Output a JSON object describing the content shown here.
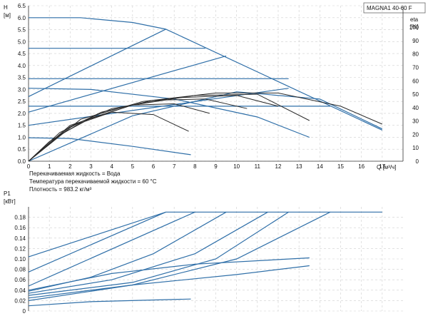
{
  "chart_data": [
    {
      "type": "line",
      "title": "MAGNA1 40-60 F",
      "ylabel": "H",
      "ylabel_unit": "[м]",
      "y2label": "eta",
      "y2label_unit": "[%]",
      "xlabel": "Q [м³/ч]",
      "xlim": [
        0,
        18
      ],
      "ylim": [
        0,
        6.5
      ],
      "y2lim": [
        0,
        100
      ],
      "grid": true,
      "xticks": [
        "0",
        "1",
        "2",
        "3",
        "4",
        "5",
        "6",
        "7",
        "8",
        "9",
        "10",
        "11",
        "12",
        "13",
        "14",
        "15",
        "16",
        "17"
      ],
      "yticks": [
        "0.0",
        "0.5",
        "1.0",
        "1.5",
        "2.0",
        "2.5",
        "3.0",
        "3.5",
        "4.0",
        "4.5",
        "5.0",
        "5.5",
        "6.0",
        "6.5"
      ],
      "y2ticks": [
        "0",
        "10",
        "20",
        "30",
        "40",
        "50",
        "60",
        "70",
        "80",
        "90",
        "100"
      ],
      "notes": [
        "Перекачиваемая жидкость = Вода",
        "Температура перекачиваемой жидкости = 60 °C",
        "Плотность = 983.2 кг/м³"
      ],
      "series_blue": [
        {
          "x": [
            0,
            2.5,
            5,
            6.6
          ],
          "y": [
            6.0,
            6.0,
            5.8,
            5.52
          ]
        },
        {
          "x": [
            6.6,
            17
          ],
          "y": [
            5.52,
            1.3
          ]
        },
        {
          "x": [
            0,
            6.6
          ],
          "y": [
            2.7,
            5.52
          ]
        },
        {
          "x": [
            0,
            8.5
          ],
          "y": [
            4.72,
            4.72
          ]
        },
        {
          "x": [
            0,
            9.5
          ],
          "y": [
            2.05,
            4.4
          ]
        },
        {
          "x": [
            0,
            12.5
          ],
          "y": [
            3.45,
            3.45
          ]
        },
        {
          "x": [
            0,
            12.5
          ],
          "y": [
            1.5,
            3.05
          ]
        },
        {
          "x": [
            0,
            4,
            9,
            14.5
          ],
          "y": [
            2.3,
            2.3,
            2.3,
            2.3
          ]
        },
        {
          "x": [
            0,
            3,
            7,
            11,
            13.5
          ],
          "y": [
            3.05,
            3.0,
            2.6,
            1.85,
            1.0
          ]
        },
        {
          "x": [
            0,
            2,
            5,
            7.8
          ],
          "y": [
            0.98,
            0.95,
            0.62,
            0.27
          ]
        },
        {
          "x": [
            0,
            5,
            10,
            14,
            17
          ],
          "y": [
            0,
            1.9,
            2.9,
            2.6,
            1.35
          ]
        }
      ],
      "series_black": [
        {
          "x": [
            0,
            1,
            2.5,
            4,
            6,
            7.7
          ],
          "y": [
            0,
            0.82,
            1.6,
            2.05,
            1.95,
            1.25
          ]
        },
        {
          "x": [
            0,
            1.5,
            3,
            5,
            7,
            8.7
          ],
          "y": [
            0,
            1.1,
            1.8,
            2.35,
            2.4,
            2.0
          ]
        },
        {
          "x": [
            0,
            1.5,
            3.5,
            6,
            8.5,
            10.5
          ],
          "y": [
            0,
            1.2,
            2.05,
            2.55,
            2.6,
            2.2
          ]
        },
        {
          "x": [
            0,
            2,
            4,
            7,
            10,
            12
          ],
          "y": [
            0,
            1.45,
            2.2,
            2.65,
            2.75,
            2.3
          ]
        },
        {
          "x": [
            0,
            2,
            5,
            8,
            11,
            13.5
          ],
          "y": [
            0,
            1.5,
            2.35,
            2.75,
            2.8,
            1.7
          ]
        },
        {
          "x": [
            0,
            2.5,
            5.5,
            9,
            12,
            15,
            17
          ],
          "y": [
            0,
            1.75,
            2.5,
            2.85,
            2.85,
            2.3,
            1.55
          ]
        }
      ]
    },
    {
      "type": "line",
      "ylabel": "P1",
      "ylabel_unit": "[кВт]",
      "ylim": [
        0,
        0.2
      ],
      "xlim": [
        0,
        18
      ],
      "grid": true,
      "yticks": [
        "0",
        "0.02",
        "0.04",
        "0.06",
        "0.08",
        "0.10",
        "0.12",
        "0.14",
        "0.16",
        "0.18"
      ],
      "series_blue": [
        {
          "x": [
            0,
            6.6,
            17
          ],
          "y": [
            0.104,
            0.19,
            0.19
          ]
        },
        {
          "x": [
            0,
            6.6
          ],
          "y": [
            0.075,
            0.19
          ]
        },
        {
          "x": [
            0,
            8
          ],
          "y": [
            0.048,
            0.19
          ]
        },
        {
          "x": [
            0,
            3,
            6,
            9.5
          ],
          "y": [
            0.038,
            0.065,
            0.11,
            0.19
          ]
        },
        {
          "x": [
            0,
            4,
            8,
            11.5
          ],
          "y": [
            0.034,
            0.06,
            0.11,
            0.19
          ]
        },
        {
          "x": [
            0,
            5,
            9,
            12.5
          ],
          "y": [
            0.03,
            0.055,
            0.1,
            0.19
          ]
        },
        {
          "x": [
            0,
            5,
            10,
            14.5
          ],
          "y": [
            0.025,
            0.05,
            0.1,
            0.19
          ]
        },
        {
          "x": [
            0,
            4,
            8,
            13.5
          ],
          "y": [
            0.04,
            0.072,
            0.09,
            0.102
          ]
        },
        {
          "x": [
            0,
            5,
            10,
            13.5
          ],
          "y": [
            0.02,
            0.05,
            0.07,
            0.087
          ]
        },
        {
          "x": [
            0,
            3,
            7.8
          ],
          "y": [
            0.01,
            0.018,
            0.023
          ]
        }
      ]
    }
  ]
}
